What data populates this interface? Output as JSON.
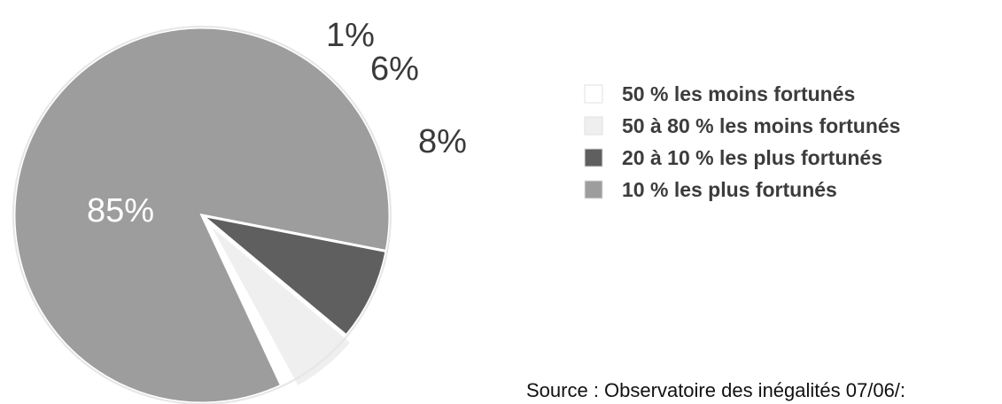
{
  "chart_data": {
    "type": "pie",
    "slices": [
      {
        "label": "50 % les moins fortunés",
        "value": 1,
        "value_label": "1%",
        "color": "#ffffff"
      },
      {
        "label": "50 à 80 % les moins fortunés",
        "value": 6,
        "value_label": "6%",
        "color": "#efefef"
      },
      {
        "label": "20 à 10 % les plus fortunés",
        "value": 8,
        "value_label": "8%",
        "color": "#5f5f5f"
      },
      {
        "label": "10 % les plus fortunés",
        "value": 85,
        "value_label": "85%",
        "color": "#9d9d9d"
      }
    ],
    "legend_placement": "right",
    "source": "Source : Observatoire des inégalités 07/06/:"
  }
}
